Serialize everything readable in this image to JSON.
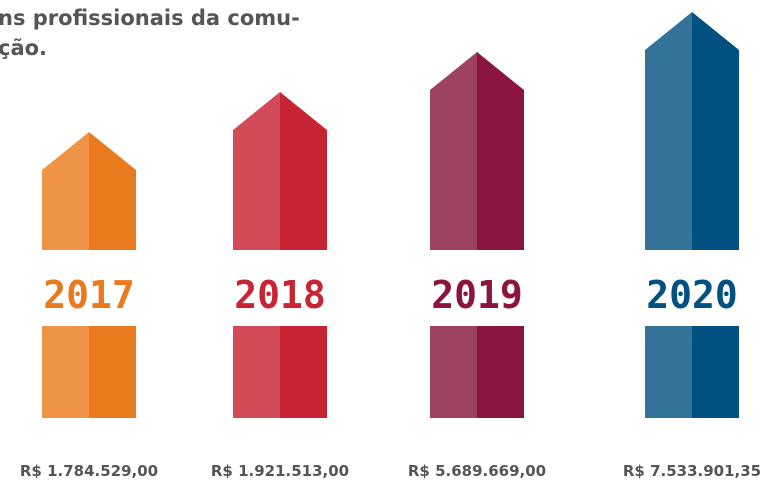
{
  "intro": {
    "lines": [
      "ns profissionais da comu-",
      "ção."
    ]
  },
  "items": [
    {
      "year": "2017",
      "amount": "R$ 1.784.529,00",
      "color_light": "#ef9446",
      "color_dark": "#e97a1e"
    },
    {
      "year": "2018",
      "amount": "R$ 1.921.513,00",
      "color_light": "#d14b59",
      "color_dark": "#c72533"
    },
    {
      "year": "2019",
      "amount": "R$ 5.689.669,00",
      "color_light": "#9e4262",
      "color_dark": "#8b1440"
    },
    {
      "year": "2020",
      "amount": "R$ 7.533.901,35",
      "color_light": "#33739a",
      "color_dark": "#005082"
    }
  ]
}
